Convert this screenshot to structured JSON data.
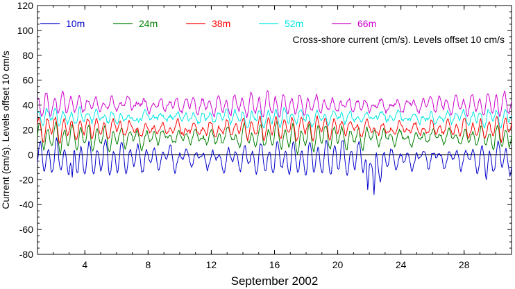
{
  "chart_data": {
    "type": "line",
    "title": "",
    "annotation": "Cross-shore current (cm/s). Levels offset 10 cm/s",
    "xlabel": "September 2002",
    "ylabel": "Current (cm/s). Levels offset 10 cm/s",
    "xlim": [
      1,
      31
    ],
    "ylim": [
      -80,
      120
    ],
    "xticks": [
      4,
      8,
      12,
      16,
      20,
      24,
      28
    ],
    "yticks": [
      -80,
      -60,
      -40,
      -20,
      0,
      20,
      40,
      60,
      80,
      100,
      120
    ],
    "zero_line": 0,
    "grid": false,
    "legend_placement": "top",
    "series": [
      {
        "name": "10m",
        "color": "#0000cc",
        "offset": 0,
        "amplitude": 11,
        "mean": -3,
        "anomalies": [
          {
            "x": 21.9,
            "value": -28
          },
          {
            "x": 22.3,
            "value": -32
          },
          {
            "x": 22.7,
            "value": -22
          },
          {
            "x": 29.4,
            "value": -20
          },
          {
            "x": 3.2,
            "value": -18
          }
        ]
      },
      {
        "name": "24m",
        "color": "#007f00",
        "offset": 10,
        "amplitude": 8,
        "mean": 14,
        "anomalies": []
      },
      {
        "name": "38m",
        "color": "#ff0000",
        "offset": 20,
        "amplitude": 7,
        "mean": 21,
        "anomalies": []
      },
      {
        "name": "52m",
        "color": "#00e5e5",
        "offset": 30,
        "amplitude": 5,
        "mean": 30,
        "anomalies": []
      },
      {
        "name": "66m",
        "color": "#cc00cc",
        "offset": 40,
        "amplitude": 7,
        "mean": 40,
        "anomalies": []
      }
    ],
    "tidal_period_days": 0.5175,
    "sample_step_days": 0.05
  }
}
